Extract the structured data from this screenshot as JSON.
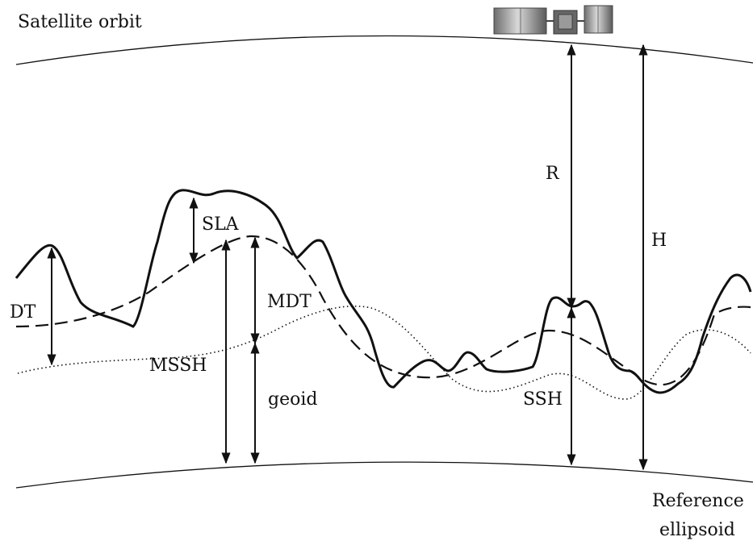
{
  "labels": {
    "satellite_orbit": "Satellite orbit",
    "R": "R",
    "H": "H",
    "SLA": "SLA",
    "MDT": "MDT",
    "DT": "DT",
    "MSSH": "MSSH",
    "geoid": "geoid",
    "SSH": "SSH",
    "reference_line1": "Reference",
    "reference_line2": "ellipsoid"
  },
  "icons": {
    "satellite": "satellite-icon"
  },
  "colors": {
    "line": "#111111",
    "background": "#ffffff",
    "solar_panel": "#8a8a8a",
    "satellite_body": "#555555"
  }
}
